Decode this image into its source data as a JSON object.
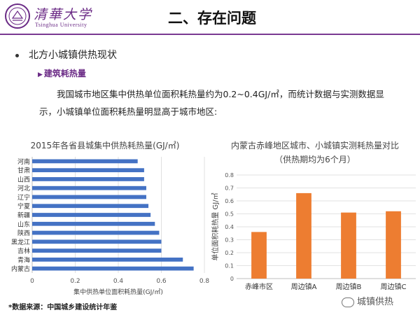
{
  "header": {
    "logo_cn": "清華大学",
    "logo_en": "Tsinghua University",
    "title": "二、存在问题"
  },
  "bullet": "北方小城镇供热现状",
  "subheading": "建筑耗热量",
  "paragraph_line1": "我国城市地区集中供热单位面积耗热量约为0.2~0.4GJ/㎡，而统计数据与实测数据显",
  "paragraph_line2": "示，小城镇单位面积耗热量明显高于城市地区:",
  "source_note": "*数据来源：中国城乡建设统计年鉴",
  "wechat": "城镇供热",
  "colors": {
    "bar_blue": "#4472c4",
    "bar_orange": "#ed7d31",
    "brand_purple": "#6b2b86"
  },
  "chart_data": [
    {
      "type": "bar",
      "orientation": "horizontal",
      "title": "2015年各省县城集中供热耗热量(GJ/㎡)",
      "xlabel": "集中供热单位面积耗热量(GJ/㎡)",
      "categories": [
        "河南",
        "甘肃",
        "山西",
        "河北",
        "辽宁",
        "宁夏",
        "新疆",
        "山东",
        "陕西",
        "黑龙江",
        "吉林",
        "青海",
        "内蒙古"
      ],
      "values": [
        0.49,
        0.52,
        0.52,
        0.53,
        0.53,
        0.54,
        0.55,
        0.57,
        0.59,
        0.6,
        0.6,
        0.7,
        0.75
      ],
      "xlim": [
        0,
        0.8
      ],
      "xticks": [
        "0",
        "0.2",
        "0.4",
        "0.6",
        "0.8"
      ],
      "grid": true
    },
    {
      "type": "bar",
      "title": "内蒙古赤峰地区城市、小城镇实测耗热量对比",
      "subtitle": "（供热期均为6个月）",
      "ylabel": "单位面积耗热量 GJ/㎡",
      "categories": [
        "赤峰市区",
        "周边镇A",
        "周边镇B",
        "周边镇C"
      ],
      "values": [
        0.36,
        0.66,
        0.51,
        0.52
      ],
      "ylim": [
        0,
        0.8
      ],
      "yticks": [
        "0",
        "0.1",
        "0.2",
        "0.3",
        "0.4",
        "0.5",
        "0.6",
        "0.7",
        "0.8"
      ],
      "grid": true
    }
  ]
}
